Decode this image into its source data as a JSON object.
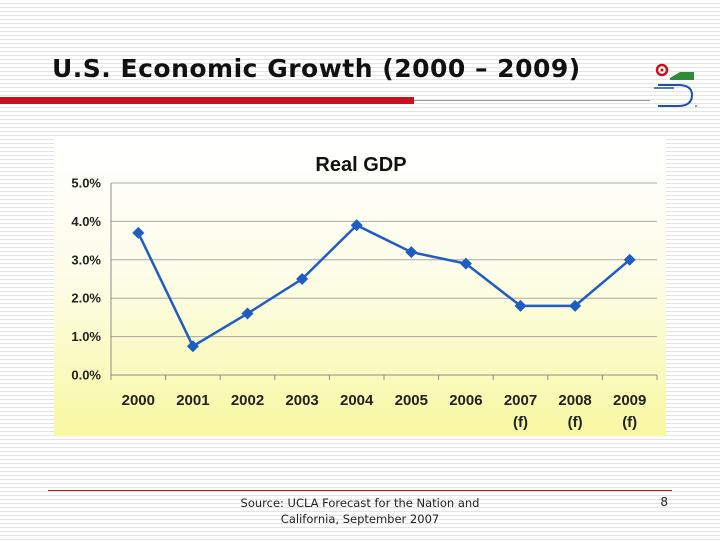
{
  "slide": {
    "title": "U.S. Economic Growth (2000 – 2009)",
    "source": "Source: UCLA Forecast for the Nation and California, September 2007",
    "page_number": "8",
    "logo_icon": "ucla-anderson-logo-icon"
  },
  "colors": {
    "accent_red": "#c8101e",
    "series_blue": "#1f5cc4",
    "logo_green": "#2e8b3a",
    "logo_blue": "#1f4fb5"
  },
  "chart_data": {
    "type": "line",
    "title": "Real GDP",
    "categories": [
      "2000",
      "2001",
      "2002",
      "2003",
      "2004",
      "2005",
      "2006",
      "2007\n(f)",
      "2008\n(f)",
      "2009\n(f)"
    ],
    "series": [
      {
        "values": [
          3.7,
          0.75,
          1.6,
          2.5,
          3.9,
          3.2,
          2.9,
          1.8,
          1.8,
          3.0
        ]
      }
    ],
    "y_ticks": [
      "0.0%",
      "1.0%",
      "2.0%",
      "3.0%",
      "4.0%",
      "5.0%"
    ],
    "ylim": [
      0,
      5
    ],
    "grid": true,
    "legend": "none",
    "xlabel": "",
    "ylabel": ""
  }
}
